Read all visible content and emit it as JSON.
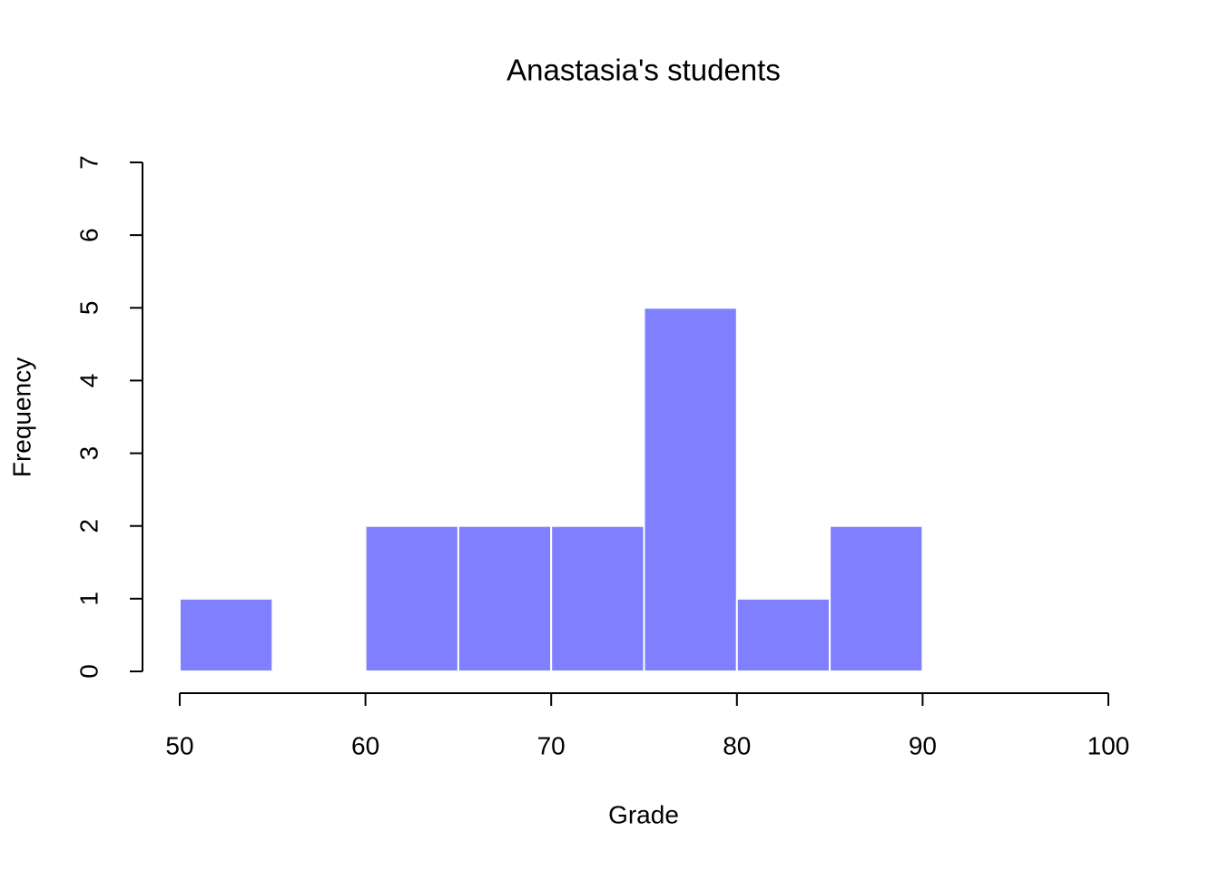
{
  "chart_data": {
    "type": "histogram",
    "title": "Anastasia's students",
    "x_label": "Grade",
    "y_label": "Frequency",
    "bins": [
      50,
      55,
      60,
      65,
      70,
      75,
      80,
      85,
      90
    ],
    "values": [
      1,
      0,
      2,
      2,
      2,
      5,
      1,
      2
    ],
    "color": "#8080ff",
    "xlim": [
      50,
      100
    ],
    "xticks": [
      50,
      60,
      70,
      80,
      90,
      100
    ],
    "ylim": [
      0,
      7
    ],
    "yticks": [
      0,
      1,
      2,
      3,
      4,
      5,
      6,
      7
    ]
  }
}
